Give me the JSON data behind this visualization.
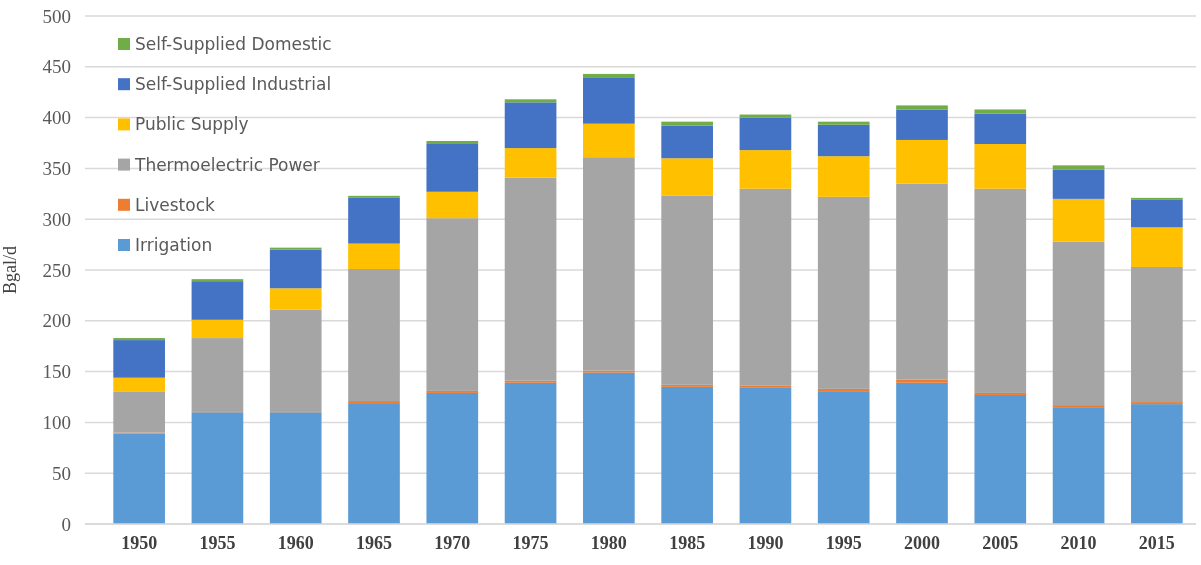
{
  "chart_data": {
    "type": "bar",
    "stacked": true,
    "ylabel": "Bgal/d",
    "categories": [
      "1950",
      "1955",
      "1960",
      "1965",
      "1970",
      "1975",
      "1980",
      "1985",
      "1990",
      "1995",
      "2000",
      "2005",
      "2010",
      "2015"
    ],
    "series": [
      {
        "name": "Irrigation",
        "color": "#5b9bd5",
        "values": [
          89,
          110,
          110,
          119,
          129,
          139,
          149,
          135,
          134,
          130,
          139,
          127,
          115,
          118
        ]
      },
      {
        "name": "Livestock",
        "color": "#ed7d31",
        "values": [
          1,
          1,
          1,
          2,
          2,
          2,
          2,
          2,
          2,
          3,
          3,
          2,
          2,
          2
        ]
      },
      {
        "name": "Thermoelectric Power",
        "color": "#a5a5a5",
        "values": [
          40,
          72,
          100,
          130,
          170,
          200,
          210,
          186,
          194,
          189,
          193,
          201,
          161,
          133
        ]
      },
      {
        "name": "Public Supply",
        "color": "#ffc000",
        "values": [
          14,
          18,
          21,
          25,
          26,
          29,
          33,
          37,
          38,
          40,
          43,
          44,
          42,
          39
        ]
      },
      {
        "name": "Self-Supplied Industrial",
        "color": "#4472c4",
        "values": [
          37,
          38,
          38,
          45,
          47,
          45,
          45,
          32,
          32,
          31,
          30,
          30,
          29,
          27
        ]
      },
      {
        "name": "Self-Supplied Domestic",
        "color": "#70ad47",
        "values": [
          2,
          2,
          2,
          2,
          3,
          3,
          4,
          4,
          3,
          3,
          4,
          4,
          4,
          2
        ]
      }
    ],
    "ylim": [
      0,
      500
    ],
    "yticks": [
      0,
      50,
      100,
      150,
      200,
      250,
      300,
      350,
      400,
      450,
      500
    ],
    "grid": "y",
    "legend": "top left"
  }
}
